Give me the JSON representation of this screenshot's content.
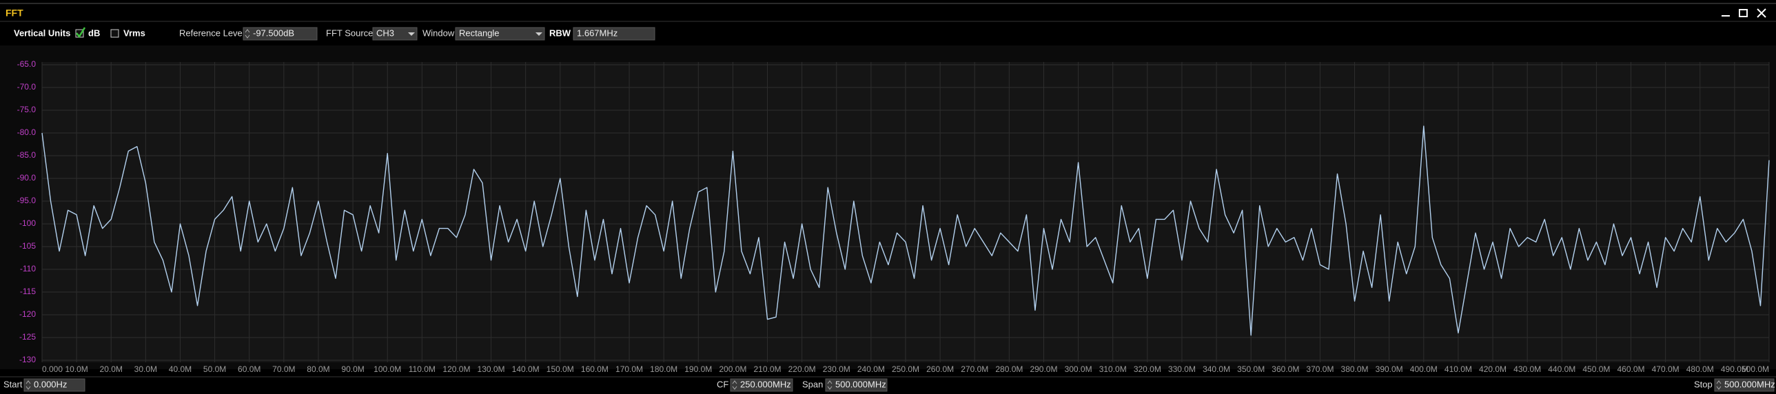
{
  "window": {
    "title": "FFT"
  },
  "toolbar": {
    "vertical_units": {
      "label": "Vertical Units",
      "options": [
        {
          "label": "dB",
          "checked": true
        },
        {
          "label": "Vrms",
          "checked": false
        }
      ]
    },
    "reference_level": {
      "label": "Reference Level",
      "value": "-97.500dB"
    },
    "fft_source": {
      "label": "FFT Source",
      "value": "CH3"
    },
    "window": {
      "label": "Window",
      "value": "Rectangle"
    },
    "rbw": {
      "label": "RBW",
      "value": "1.667MHz"
    }
  },
  "chart_data": {
    "type": "line",
    "color": "#b4d2f0",
    "grid": true,
    "xlim": [
      0,
      500000000
    ],
    "ylim": [
      -130,
      -65
    ],
    "yticks": [
      {
        "value": -65,
        "label": "-65.0"
      },
      {
        "value": -70,
        "label": "-70.0"
      },
      {
        "value": -75,
        "label": "-75.0"
      },
      {
        "value": -80,
        "label": "-80.0"
      },
      {
        "value": -85,
        "label": "-85.0"
      },
      {
        "value": -90,
        "label": "-90.0"
      },
      {
        "value": -95,
        "label": "-95.0"
      },
      {
        "value": -100,
        "label": "-100"
      },
      {
        "value": -105,
        "label": "-105"
      },
      {
        "value": -110,
        "label": "-110"
      },
      {
        "value": -115,
        "label": "-115"
      },
      {
        "value": -120,
        "label": "-120"
      },
      {
        "value": -125,
        "label": "-125"
      },
      {
        "value": -130,
        "label": "-130"
      }
    ],
    "xticks": [
      {
        "value": 0,
        "label": "0.000"
      },
      {
        "value": 10000000,
        "label": "10.0M"
      },
      {
        "value": 20000000,
        "label": "20.0M"
      },
      {
        "value": 30000000,
        "label": "30.0M"
      },
      {
        "value": 40000000,
        "label": "40.0M"
      },
      {
        "value": 50000000,
        "label": "50.0M"
      },
      {
        "value": 60000000,
        "label": "60.0M"
      },
      {
        "value": 70000000,
        "label": "70.0M"
      },
      {
        "value": 80000000,
        "label": "80.0M"
      },
      {
        "value": 90000000,
        "label": "90.0M"
      },
      {
        "value": 100000000,
        "label": "100.0M"
      },
      {
        "value": 110000000,
        "label": "110.0M"
      },
      {
        "value": 120000000,
        "label": "120.0M"
      },
      {
        "value": 130000000,
        "label": "130.0M"
      },
      {
        "value": 140000000,
        "label": "140.0M"
      },
      {
        "value": 150000000,
        "label": "150.0M"
      },
      {
        "value": 160000000,
        "label": "160.0M"
      },
      {
        "value": 170000000,
        "label": "170.0M"
      },
      {
        "value": 180000000,
        "label": "180.0M"
      },
      {
        "value": 190000000,
        "label": "190.0M"
      },
      {
        "value": 200000000,
        "label": "200.0M"
      },
      {
        "value": 210000000,
        "label": "210.0M"
      },
      {
        "value": 220000000,
        "label": "220.0M"
      },
      {
        "value": 230000000,
        "label": "230.0M"
      },
      {
        "value": 240000000,
        "label": "240.0M"
      },
      {
        "value": 250000000,
        "label": "250.0M"
      },
      {
        "value": 260000000,
        "label": "260.0M"
      },
      {
        "value": 270000000,
        "label": "270.0M"
      },
      {
        "value": 280000000,
        "label": "280.0M"
      },
      {
        "value": 290000000,
        "label": "290.0M"
      },
      {
        "value": 300000000,
        "label": "300.0M"
      },
      {
        "value": 310000000,
        "label": "310.0M"
      },
      {
        "value": 320000000,
        "label": "320.0M"
      },
      {
        "value": 330000000,
        "label": "330.0M"
      },
      {
        "value": 340000000,
        "label": "340.0M"
      },
      {
        "value": 350000000,
        "label": "350.0M"
      },
      {
        "value": 360000000,
        "label": "360.0M"
      },
      {
        "value": 370000000,
        "label": "370.0M"
      },
      {
        "value": 380000000,
        "label": "380.0M"
      },
      {
        "value": 390000000,
        "label": "390.0M"
      },
      {
        "value": 400000000,
        "label": "400.0M"
      },
      {
        "value": 410000000,
        "label": "410.0M"
      },
      {
        "value": 420000000,
        "label": "420.0M"
      },
      {
        "value": 430000000,
        "label": "430.0M"
      },
      {
        "value": 440000000,
        "label": "440.0M"
      },
      {
        "value": 450000000,
        "label": "450.0M"
      },
      {
        "value": 460000000,
        "label": "460.0M"
      },
      {
        "value": 470000000,
        "label": "470.0M"
      },
      {
        "value": 480000000,
        "label": "480.0M"
      },
      {
        "value": 490000000,
        "label": "490.0M"
      },
      {
        "value": 500000000,
        "label": "500.0M"
      }
    ],
    "x": [
      0,
      2500000,
      5000000,
      7500000,
      10000000,
      12500000,
      15000000,
      17500000,
      20000000,
      22500000,
      25000000,
      27500000,
      30000000,
      32500000,
      35000000,
      37500000,
      40000000,
      42500000,
      45000000,
      47500000,
      50000000,
      52500000,
      55000000,
      57500000,
      60000000,
      62500000,
      65000000,
      67500000,
      70000000,
      72500000,
      75000000,
      77500000,
      80000000,
      82500000,
      85000000,
      87500000,
      90000000,
      92500000,
      95000000,
      97500000,
      100000000,
      102500000,
      105000000,
      107500000,
      110000000,
      112500000,
      115000000,
      117500000,
      120000000,
      122500000,
      125000000,
      127500000,
      130000000,
      132500000,
      135000000,
      137500000,
      140000000,
      142500000,
      145000000,
      147500000,
      150000000,
      152500000,
      155000000,
      157500000,
      160000000,
      162500000,
      165000000,
      167500000,
      170000000,
      172500000,
      175000000,
      177500000,
      180000000,
      182500000,
      185000000,
      187500000,
      190000000,
      192500000,
      195000000,
      197500000,
      200000000,
      202500000,
      205000000,
      207500000,
      210000000,
      212500000,
      215000000,
      217500000,
      220000000,
      222500000,
      225000000,
      227500000,
      230000000,
      232500000,
      235000000,
      237500000,
      240000000,
      242500000,
      245000000,
      247500000,
      250000000,
      252500000,
      255000000,
      257500000,
      260000000,
      262500000,
      265000000,
      267500000,
      270000000,
      272500000,
      275000000,
      277500000,
      280000000,
      282500000,
      285000000,
      287500000,
      290000000,
      292500000,
      295000000,
      297500000,
      300000000,
      302500000,
      305000000,
      307500000,
      310000000,
      312500000,
      315000000,
      317500000,
      320000000,
      322500000,
      325000000,
      327500000,
      330000000,
      332500000,
      335000000,
      337500000,
      340000000,
      342500000,
      345000000,
      347500000,
      350000000,
      352500000,
      355000000,
      357500000,
      360000000,
      362500000,
      365000000,
      367500000,
      370000000,
      372500000,
      375000000,
      377500000,
      380000000,
      382500000,
      385000000,
      387500000,
      390000000,
      392500000,
      395000000,
      397500000,
      400000000,
      402500000,
      405000000,
      407500000,
      410000000,
      412500000,
      415000000,
      417500000,
      420000000,
      422500000,
      425000000,
      427500000,
      430000000,
      432500000,
      435000000,
      437500000,
      440000000,
      442500000,
      445000000,
      447500000,
      450000000,
      452500000,
      455000000,
      457500000,
      460000000,
      462500000,
      465000000,
      467500000,
      470000000,
      472500000,
      475000000,
      477500000,
      480000000,
      482500000,
      485000000,
      487500000,
      490000000,
      492500000,
      495000000,
      497500000,
      500000000
    ],
    "values": [
      -80,
      -95,
      -106,
      -97,
      -98,
      -107,
      -96,
      -101,
      -99,
      -92,
      -84,
      -83,
      -91,
      -104,
      -108,
      -115,
      -100,
      -107,
      -118,
      -106,
      -99,
      -97,
      -94,
      -106,
      -95,
      -104,
      -100,
      -106,
      -101,
      -92,
      -107,
      -102,
      -95,
      -104,
      -112,
      -97,
      -98,
      -106,
      -96,
      -102,
      -84.5,
      -108,
      -97,
      -106,
      -99,
      -107,
      -101,
      -101,
      -103,
      -98,
      -88,
      -91,
      -108,
      -96,
      -104,
      -99,
      -106,
      -95,
      -105,
      -98,
      -90,
      -105,
      -116,
      -97,
      -108,
      -99,
      -111,
      -101,
      -113,
      -103,
      -96,
      -98,
      -106,
      -95,
      -112,
      -101,
      -93,
      -92,
      -115,
      -106,
      -84,
      -106,
      -111,
      -103,
      -121,
      -120.5,
      -104,
      -112,
      -100,
      -110,
      -114,
      -92,
      -102,
      -110,
      -95,
      -107,
      -113,
      -104,
      -109,
      -102,
      -104,
      -112,
      -96,
      -108,
      -101,
      -109,
      -98,
      -105,
      -101,
      -104,
      -107,
      -102,
      -104,
      -106,
      -98,
      -119,
      -101,
      -110,
      -99,
      -104,
      -86.5,
      -105,
      -103,
      -108,
      -113,
      -96,
      -104,
      -101,
      -112,
      -99,
      -99,
      -97,
      -108,
      -95,
      -101,
      -104,
      -88,
      -98,
      -102,
      -97,
      -124.5,
      -96,
      -105,
      -101,
      -104,
      -103,
      -108,
      -101,
      -109,
      -110,
      -89,
      -100,
      -117,
      -106,
      -114,
      -98,
      -117,
      -104,
      -111,
      -105,
      -78.5,
      -103,
      -109,
      -112,
      -124,
      -113,
      -102,
      -110,
      -104,
      -112,
      -101,
      -105,
      -103,
      -104,
      -99,
      -107,
      -103,
      -110,
      -101,
      -108,
      -104,
      -109,
      -100,
      -107,
      -103,
      -111,
      -104,
      -114,
      -103,
      -106,
      -101,
      -104,
      -94,
      -108,
      -101,
      -104,
      -102,
      -99,
      -106,
      -118,
      -86
    ]
  },
  "footer": {
    "start": {
      "label": "Start",
      "value": "0.000Hz"
    },
    "cf": {
      "label": "CF",
      "value": "250.000MHz"
    },
    "span": {
      "label": "Span",
      "value": "500.000MHz"
    },
    "stop": {
      "label": "Stop",
      "value": "500.000MHz"
    }
  }
}
